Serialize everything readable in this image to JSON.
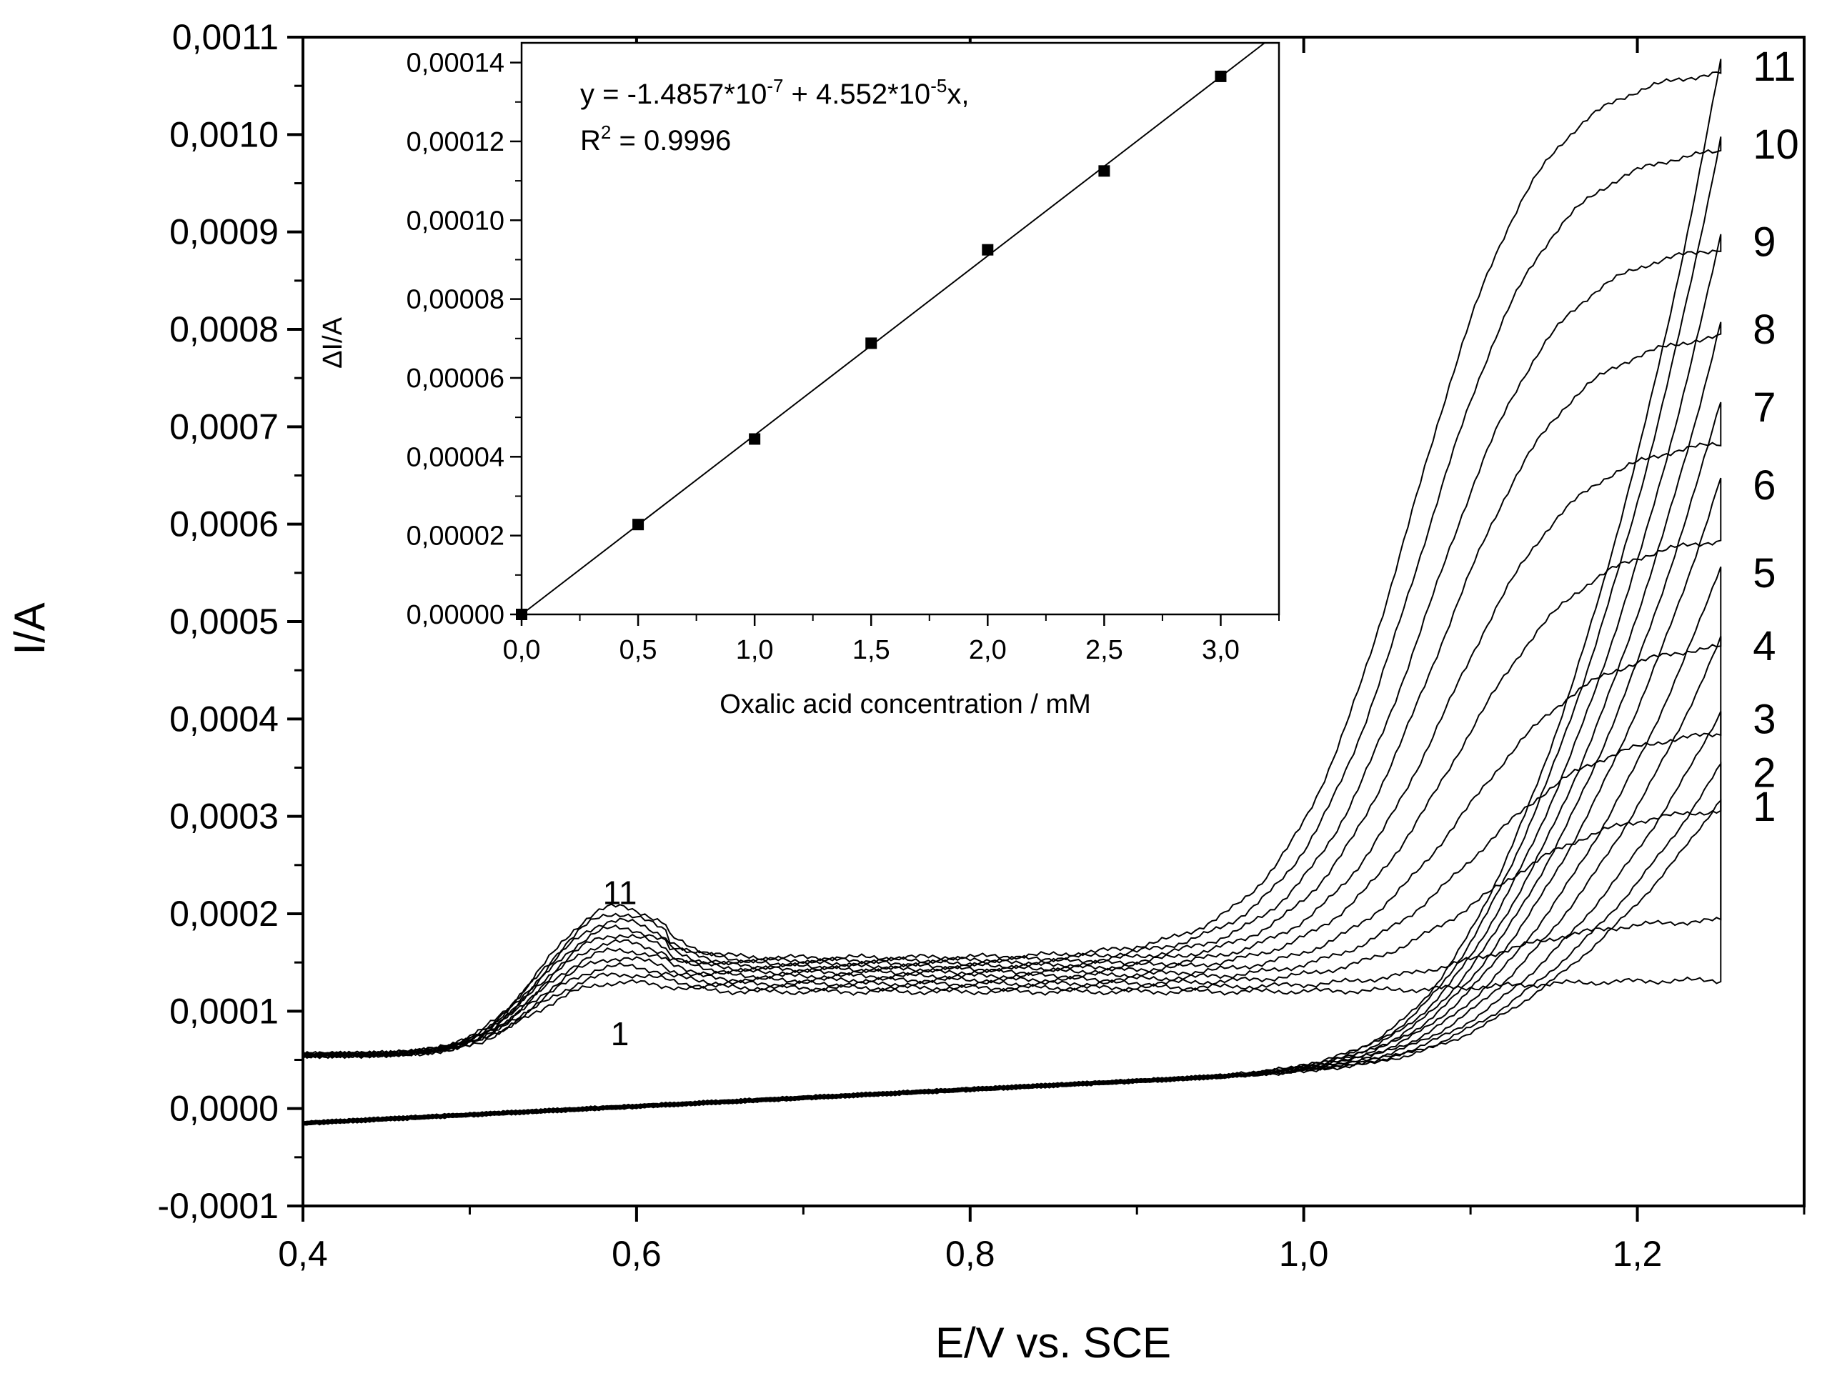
{
  "chart_data": [
    {
      "id": "main",
      "type": "line",
      "title": "",
      "xlabel": "E/V vs. SCE",
      "ylabel": "I/A",
      "xlim": [
        0.4,
        1.3
      ],
      "ylim": [
        -0.0001,
        0.0011
      ],
      "grid": false,
      "x_ticks": [
        {
          "value": 0.4,
          "label": "0,4"
        },
        {
          "value": 0.6,
          "label": "0,6"
        },
        {
          "value": 0.8,
          "label": "0,8"
        },
        {
          "value": 1.0,
          "label": "1,0"
        },
        {
          "value": 1.2,
          "label": "1,2"
        }
      ],
      "y_ticks": [
        {
          "value": -0.0001,
          "label": "-0,0001"
        },
        {
          "value": 0.0,
          "label": "0,0000"
        },
        {
          "value": 0.0001,
          "label": "0,0001"
        },
        {
          "value": 0.0002,
          "label": "0,0002"
        },
        {
          "value": 0.0003,
          "label": "0,0003"
        },
        {
          "value": 0.0004,
          "label": "0,0004"
        },
        {
          "value": 0.0005,
          "label": "0,0005"
        },
        {
          "value": 0.0006,
          "label": "0,0006"
        },
        {
          "value": 0.0007,
          "label": "0,0007"
        },
        {
          "value": 0.0008,
          "label": "0,0008"
        },
        {
          "value": 0.0009,
          "label": "0,0009"
        },
        {
          "value": 0.001,
          "label": "0,0010"
        },
        {
          "value": 0.0011,
          "label": "0,0011"
        }
      ],
      "series": [
        {
          "name": "1",
          "label": "1",
          "e_end": 1.25,
          "i_end": 0.00031,
          "i_reverse_plateau": 0.000132,
          "i_wave_base": 0.00012
        },
        {
          "name": "2",
          "label": "2",
          "e_end": 1.25,
          "i_end": 0.000345,
          "i_reverse_plateau": 0.000195,
          "i_wave_base": 0.000124
        },
        {
          "name": "3",
          "label": "3",
          "e_end": 1.25,
          "i_end": 0.0004,
          "i_reverse_plateau": 0.00031,
          "i_wave_base": 0.000128
        },
        {
          "name": "4",
          "label": "4",
          "e_end": 1.25,
          "i_end": 0.000475,
          "i_reverse_plateau": 0.00039,
          "i_wave_base": 0.000132
        },
        {
          "name": "5",
          "label": "5",
          "e_end": 1.25,
          "i_end": 0.00055,
          "i_reverse_plateau": 0.00048,
          "i_wave_base": 0.000136
        },
        {
          "name": "6",
          "label": "6",
          "e_end": 1.25,
          "i_end": 0.00064,
          "i_reverse_plateau": 0.00059,
          "i_wave_base": 0.00014
        },
        {
          "name": "7",
          "label": "7",
          "e_end": 1.25,
          "i_end": 0.00072,
          "i_reverse_plateau": 0.00069,
          "i_wave_base": 0.000143
        },
        {
          "name": "8",
          "label": "8",
          "e_end": 1.25,
          "i_end": 0.0008,
          "i_reverse_plateau": 0.0008,
          "i_wave_base": 0.000146
        },
        {
          "name": "9",
          "label": "9",
          "e_end": 1.25,
          "i_end": 0.00089,
          "i_reverse_plateau": 0.00089,
          "i_wave_base": 0.000149
        },
        {
          "name": "10",
          "label": "10",
          "e_end": 1.25,
          "i_end": 0.00099,
          "i_reverse_plateau": 0.00099,
          "i_wave_base": 0.000152
        },
        {
          "name": "11",
          "label": "11",
          "e_end": 1.25,
          "i_end": 0.00107,
          "i_reverse_plateau": 0.00107,
          "i_wave_base": 0.000155
        }
      ],
      "annotations": [
        {
          "text": "11",
          "x": 0.59,
          "y": 0.00021
        },
        {
          "text": "1",
          "x": 0.59,
          "y": 6.5e-05
        }
      ]
    },
    {
      "id": "inset",
      "type": "scatter",
      "title": "",
      "xlabel": "Oxalic acid concentration / mM",
      "ylabel": "ΔI/A",
      "xlim": [
        0.0,
        3.25
      ],
      "ylim": [
        0.0,
        0.000145
      ],
      "grid": false,
      "x": [
        0.0,
        0.5,
        1.0,
        1.5,
        2.0,
        2.5,
        3.0
      ],
      "y": [
        0.0,
        2.28e-05,
        4.45e-05,
        6.88e-05,
        9.25e-05,
        0.0001125,
        0.0001365
      ],
      "fit": {
        "intercept": -1.4857e-07,
        "slope": 4.552e-05,
        "r2": 0.9996
      },
      "x_ticks": [
        {
          "value": 0.0,
          "label": "0,0"
        },
        {
          "value": 0.5,
          "label": "0,5"
        },
        {
          "value": 1.0,
          "label": "1,0"
        },
        {
          "value": 1.5,
          "label": "1,5"
        },
        {
          "value": 2.0,
          "label": "2,0"
        },
        {
          "value": 2.5,
          "label": "2,5"
        },
        {
          "value": 3.0,
          "label": "3,0"
        }
      ],
      "y_ticks": [
        {
          "value": 0.0,
          "label": "0,00000"
        },
        {
          "value": 2e-05,
          "label": "0,00002"
        },
        {
          "value": 4e-05,
          "label": "0,00004"
        },
        {
          "value": 6e-05,
          "label": "0,00006"
        },
        {
          "value": 8e-05,
          "label": "0,00008"
        },
        {
          "value": 0.0001,
          "label": "0,00010"
        },
        {
          "value": 0.00012,
          "label": "0,00012"
        },
        {
          "value": 0.00014,
          "label": "0,00014"
        }
      ],
      "equation": {
        "line1_a": "y = -1.4857*10",
        "line1_a_sup": "-7",
        "line1_b": " + 4.552*10",
        "line1_b_sup": "-5",
        "line1_c": "x,",
        "line2_a": "R",
        "line2_sup": "2",
        "line2_b": " = 0.9996"
      }
    }
  ]
}
